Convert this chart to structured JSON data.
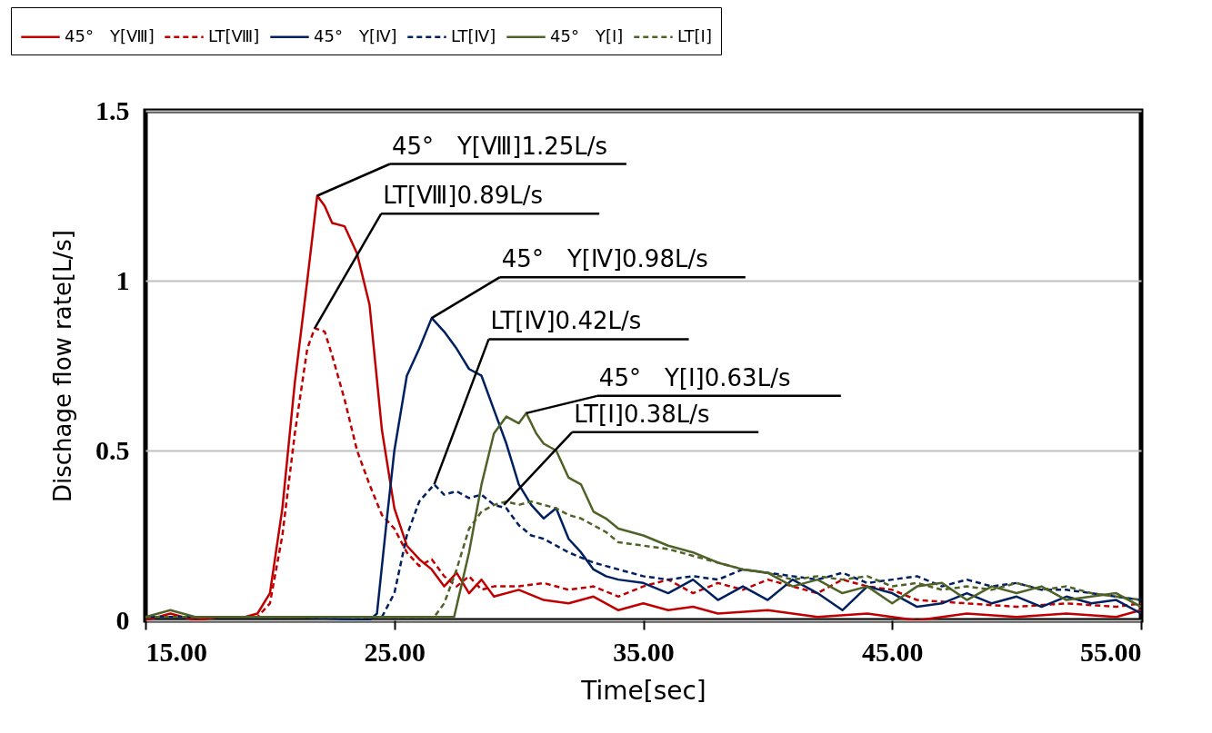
{
  "chart_data": {
    "type": "line",
    "xlabel": "Time[sec]",
    "ylabel": "Dischage flow rate[L/s]",
    "xlim": [
      15,
      55
    ],
    "xticks": [
      {
        "value": 15,
        "label": "15.00"
      },
      {
        "value": 25,
        "label": "25.00"
      },
      {
        "value": 35,
        "label": "35.00"
      },
      {
        "value": 45,
        "label": "45.00"
      },
      {
        "value": 55,
        "label": "55.00"
      }
    ],
    "ylim": [
      0,
      1.5
    ],
    "yticks": [
      0,
      0.5,
      1,
      1.5
    ],
    "grid": "y",
    "legend": "top",
    "series": [
      {
        "name": "45°　Y[Ⅷ]",
        "color": "#c00000",
        "line_style": "solid",
        "x": [
          15,
          16,
          17,
          18,
          19,
          19.5,
          20,
          20.5,
          21,
          21.5,
          21.9,
          22.2,
          22.5,
          23,
          23.5,
          24,
          24.5,
          25,
          25.5,
          26,
          26.5,
          27,
          27.5,
          28,
          28.5,
          29,
          30,
          31,
          32,
          33,
          34,
          35,
          36,
          37,
          38,
          40,
          42,
          44,
          46,
          48,
          50,
          52,
          54,
          55
        ],
        "values": [
          0,
          0.02,
          0,
          0.01,
          0.01,
          0.02,
          0.08,
          0.33,
          0.7,
          1.0,
          1.25,
          1.22,
          1.17,
          1.16,
          1.08,
          0.93,
          0.56,
          0.33,
          0.22,
          0.18,
          0.15,
          0.1,
          0.14,
          0.08,
          0.12,
          0.07,
          0.09,
          0.06,
          0.05,
          0.07,
          0.03,
          0.05,
          0.03,
          0.04,
          0.02,
          0.03,
          0.01,
          0.02,
          0,
          0.02,
          0.01,
          0.02,
          0.01,
          0.03
        ]
      },
      {
        "name": "LT[Ⅷ]",
        "color": "#c00000",
        "line_style": "dashed",
        "x": [
          15,
          17,
          19,
          19.5,
          20,
          20.5,
          21,
          21.5,
          21.8,
          22.2,
          22.5,
          23,
          23.5,
          24,
          24.5,
          25,
          25.5,
          26,
          26.5,
          27,
          27.5,
          28,
          28.5,
          29,
          30,
          31,
          32,
          33,
          34,
          35,
          36,
          37,
          38,
          39,
          40,
          41,
          42,
          43,
          44,
          45,
          46,
          48,
          50,
          52,
          54,
          55
        ],
        "values": [
          0.01,
          0.01,
          0.01,
          0.01,
          0.05,
          0.25,
          0.55,
          0.8,
          0.86,
          0.85,
          0.78,
          0.65,
          0.5,
          0.4,
          0.31,
          0.27,
          0.2,
          0.16,
          0.18,
          0.13,
          0.1,
          0.13,
          0.09,
          0.1,
          0.1,
          0.11,
          0.09,
          0.1,
          0.07,
          0.1,
          0.12,
          0.08,
          0.11,
          0.09,
          0.12,
          0.1,
          0.08,
          0.12,
          0.1,
          0.09,
          0.06,
          0.05,
          0.04,
          0.05,
          0.04,
          0.05
        ]
      },
      {
        "name": "45°　Y[Ⅳ]",
        "color": "#002060",
        "line_style": "solid",
        "x": [
          15,
          18,
          21,
          24,
          24.3,
          24.7,
          25,
          25.5,
          26,
          26.5,
          27,
          27.5,
          28,
          28.5,
          29,
          29.5,
          30,
          30.5,
          31,
          31.5,
          32,
          32.5,
          33,
          33.5,
          34,
          35,
          36,
          37,
          38,
          39,
          40,
          41,
          42,
          43,
          44,
          45,
          46,
          47,
          48,
          49,
          50,
          51,
          52,
          53,
          54,
          55
        ],
        "values": [
          0.01,
          0.01,
          0.01,
          0,
          0.02,
          0.3,
          0.5,
          0.72,
          0.8,
          0.89,
          0.85,
          0.8,
          0.74,
          0.72,
          0.62,
          0.52,
          0.4,
          0.34,
          0.3,
          0.33,
          0.24,
          0.2,
          0.15,
          0.13,
          0.12,
          0.11,
          0.08,
          0.12,
          0.06,
          0.1,
          0.06,
          0.12,
          0.08,
          0.03,
          0.1,
          0.08,
          0.04,
          0.05,
          0.08,
          0.05,
          0.07,
          0.04,
          0.07,
          0.05,
          0.06,
          0.02
        ]
      },
      {
        "name": "LT[Ⅳ]",
        "color": "#002060",
        "line_style": "dashed",
        "x": [
          15,
          18,
          21,
          24.5,
          25,
          25.5,
          26,
          26.6,
          27,
          27.5,
          28,
          28.5,
          29,
          29.5,
          30,
          30.5,
          31,
          31.5,
          32,
          33,
          34,
          35,
          36,
          37,
          38,
          39,
          40,
          41,
          42,
          43,
          44,
          45,
          46,
          47,
          48,
          49,
          50,
          51,
          52,
          53,
          54,
          55
        ],
        "values": [
          0.01,
          0.01,
          0.01,
          0.01,
          0.08,
          0.25,
          0.35,
          0.4,
          0.37,
          0.38,
          0.36,
          0.37,
          0.34,
          0.33,
          0.28,
          0.25,
          0.24,
          0.22,
          0.2,
          0.17,
          0.15,
          0.13,
          0.12,
          0.13,
          0.12,
          0.15,
          0.14,
          0.13,
          0.12,
          0.14,
          0.11,
          0.12,
          0.13,
          0.1,
          0.12,
          0.1,
          0.11,
          0.09,
          0.09,
          0.08,
          0.07,
          0.06
        ]
      },
      {
        "name": "45°　Y[Ⅰ]",
        "color": "#4f6228",
        "line_style": "solid",
        "x": [
          15,
          16,
          17,
          20,
          24,
          27.4,
          28,
          28.5,
          29,
          29.5,
          30,
          30.3,
          30.7,
          31,
          31.5,
          32,
          32.5,
          33,
          33.5,
          34,
          35,
          36,
          37,
          38,
          39,
          40,
          41,
          42,
          43,
          44,
          45,
          46,
          47,
          48,
          49,
          50,
          51,
          52,
          53,
          54,
          55
        ],
        "values": [
          0.01,
          0.03,
          0.01,
          0.01,
          0.01,
          0.01,
          0.2,
          0.4,
          0.55,
          0.6,
          0.58,
          0.61,
          0.55,
          0.52,
          0.5,
          0.42,
          0.4,
          0.32,
          0.3,
          0.27,
          0.25,
          0.22,
          0.2,
          0.17,
          0.15,
          0.14,
          0.1,
          0.12,
          0.08,
          0.1,
          0.05,
          0.1,
          0.11,
          0.06,
          0.1,
          0.08,
          0.1,
          0.06,
          0.07,
          0.08,
          0.04
        ]
      },
      {
        "name": "LT[Ⅰ]",
        "color": "#4f6228",
        "line_style": "dashed",
        "x": [
          15,
          18,
          22,
          26.6,
          27,
          27.5,
          28,
          28.5,
          29,
          29.5,
          30,
          30.5,
          31,
          31.5,
          32,
          32.5,
          33,
          33.5,
          34,
          35,
          36,
          37,
          38,
          39,
          40,
          41,
          42,
          43,
          44,
          45,
          46,
          47,
          48,
          49,
          50,
          51,
          52,
          53,
          54,
          55
        ],
        "values": [
          0.01,
          0.01,
          0.01,
          0.01,
          0.05,
          0.15,
          0.27,
          0.32,
          0.34,
          0.35,
          0.34,
          0.35,
          0.34,
          0.33,
          0.31,
          0.3,
          0.28,
          0.26,
          0.23,
          0.22,
          0.21,
          0.19,
          0.17,
          0.15,
          0.14,
          0.12,
          0.13,
          0.12,
          0.13,
          0.1,
          0.11,
          0.09,
          0.1,
          0.09,
          0.11,
          0.09,
          0.1,
          0.08,
          0.07,
          0.06
        ]
      }
    ],
    "annotations": [
      {
        "text": "45°　Y[Ⅷ]1.25L/s",
        "x": 21.9,
        "y": 1.25
      },
      {
        "text": "LT[Ⅷ]0.89L/s",
        "x": 21.8,
        "y": 0.86
      },
      {
        "text": "45°　Y[Ⅳ]0.98L/s",
        "x": 26.5,
        "y": 0.89
      },
      {
        "text": "LT[Ⅳ]0.42L/s",
        "x": 26.6,
        "y": 0.4
      },
      {
        "text": "45°　Y[Ⅰ]0.63L/s",
        "x": 30.3,
        "y": 0.61
      },
      {
        "text": "LT[Ⅰ]0.38L/s",
        "x": 29.4,
        "y": 0.34
      }
    ]
  }
}
